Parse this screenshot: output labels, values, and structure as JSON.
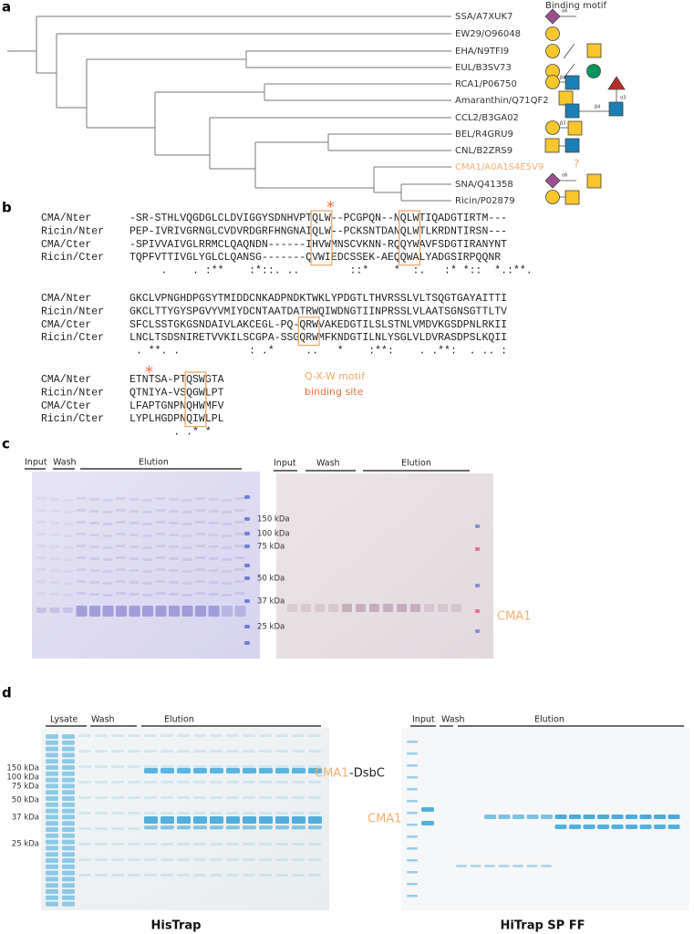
{
  "panel_a": {
    "label": "a",
    "header": "Binding motif",
    "taxa": [
      "SSA/A7XUK7",
      "EW29/O96048",
      "EHA/N9TFI9",
      "EUL/B3SV73",
      "RCA1/P06750",
      "Amaranthin/Q71QF2",
      "CCL2/B3GA02",
      "BEL/R4GRU9",
      "CNL/B2ZRS9",
      "CMA1/A0A1S4E5V9",
      "SNA/Q41358",
      "Ricin/P02879"
    ],
    "unknown": "?",
    "linkages": [
      "α6",
      "β4",
      "β4",
      "α3",
      "β3",
      "α6"
    ]
  },
  "panel_b": {
    "label": "b",
    "blocks": [
      {
        "rows": [
          {
            "name": "CMA/Nter",
            "seq": "-SR-STHLVQGDGLCLDVIGGYSDNHVPTQLW--PCGPQN--NQLWTIQADGTIRTM---"
          },
          {
            "name": "Ricin/Nter",
            "seq": "PEP-IVRIVGRNGLCVDVRDGRFHNGNAIQLW--PCKSNTDANQLWTLKRDNTIRSN---"
          },
          {
            "name": "CMA/Cter",
            "seq": "-SPIVVAIVGLRRMCLQAQNDN------IHVWMNSCVKNN-RQQYWAVFSDGTIRANYNT"
          },
          {
            "name": "Ricin/Cter",
            "seq": "TQPFVTTIVGLYGLCLQANSG-------QVWIEDCSSEK-AEQQWALYADGSIRPQQNR"
          }
        ],
        "consensus": "     .    . :**    :*::. ..        ::*    *  :.   :* *::  *.:**."
      },
      {
        "rows": [
          {
            "name": "CMA/Nter",
            "seq": "GKCLVPNGHDPGSYTMIDDCNKADPNDKTWKLYPDGTLTHVRSSLVLTSQGTGAYAITTI"
          },
          {
            "name": "Ricin/Nter",
            "seq": "GKCLTTYGYSPGVYVMIYDCNTAATDATRWQIWDNGTIINPRSSLVLAATSGNSGTTLTV"
          },
          {
            "name": "CMA/Cter",
            "seq": "SFCLSSTGKGSNDAIVLAKCEGL-PQ-QRWVAKEDGTILSLSTNLVMDVKGSDPNLRKII"
          },
          {
            "name": "Ricin/Cter",
            "seq": "LNCLTSDSNIRETVVKILSCGPA-SSGQRWMFKNDGTILNLYSGLVLDVRASDPSLKQII"
          }
        ],
        "consensus": " . **. .           : .*     ..   *    :**:    . .**:  . .. :"
      },
      {
        "rows": [
          {
            "name": "CMA/Nter",
            "seq": "ETNTSA-PTQSWGTA"
          },
          {
            "name": "Ricin/Nter",
            "seq": "QTNIYA-VSQGWLPT"
          },
          {
            "name": "CMA/Cter",
            "seq": "LFAPTGNPNQHWMFV"
          },
          {
            "name": "Ricin/Cter",
            "seq": "LYPLHGDPNQIWLPL"
          }
        ],
        "consensus": "       . .* *"
      }
    ],
    "stars": [
      "*",
      "*"
    ],
    "legend": [
      "Q-X-W motif",
      "binding site"
    ]
  },
  "panel_c": {
    "label": "c",
    "left_headers": [
      "Input",
      "Wash",
      "Elution"
    ],
    "right_headers": [
      "Input",
      "Wash",
      "Elution"
    ],
    "markers": [
      "150 kDa",
      "100 kDa",
      "75 kDa",
      "50 kDa",
      "37 kDa",
      "25 kDa"
    ],
    "band_label": "CMA1"
  },
  "panel_d": {
    "label": "d",
    "left": {
      "headers": [
        "Lysate",
        "Wash",
        "Elution"
      ],
      "markers": [
        "150 kDa",
        "100 kDa",
        "75 kDa",
        "50 kDa",
        "37 kDa",
        "25 kDa"
      ],
      "band_label": "CMA1",
      "tag": "-DsbC",
      "title": "HisTrap"
    },
    "right": {
      "headers": [
        "Input",
        "Wash",
        "Elution"
      ],
      "band_label": "CMA1",
      "title": "HiTrap SP FF"
    }
  }
}
